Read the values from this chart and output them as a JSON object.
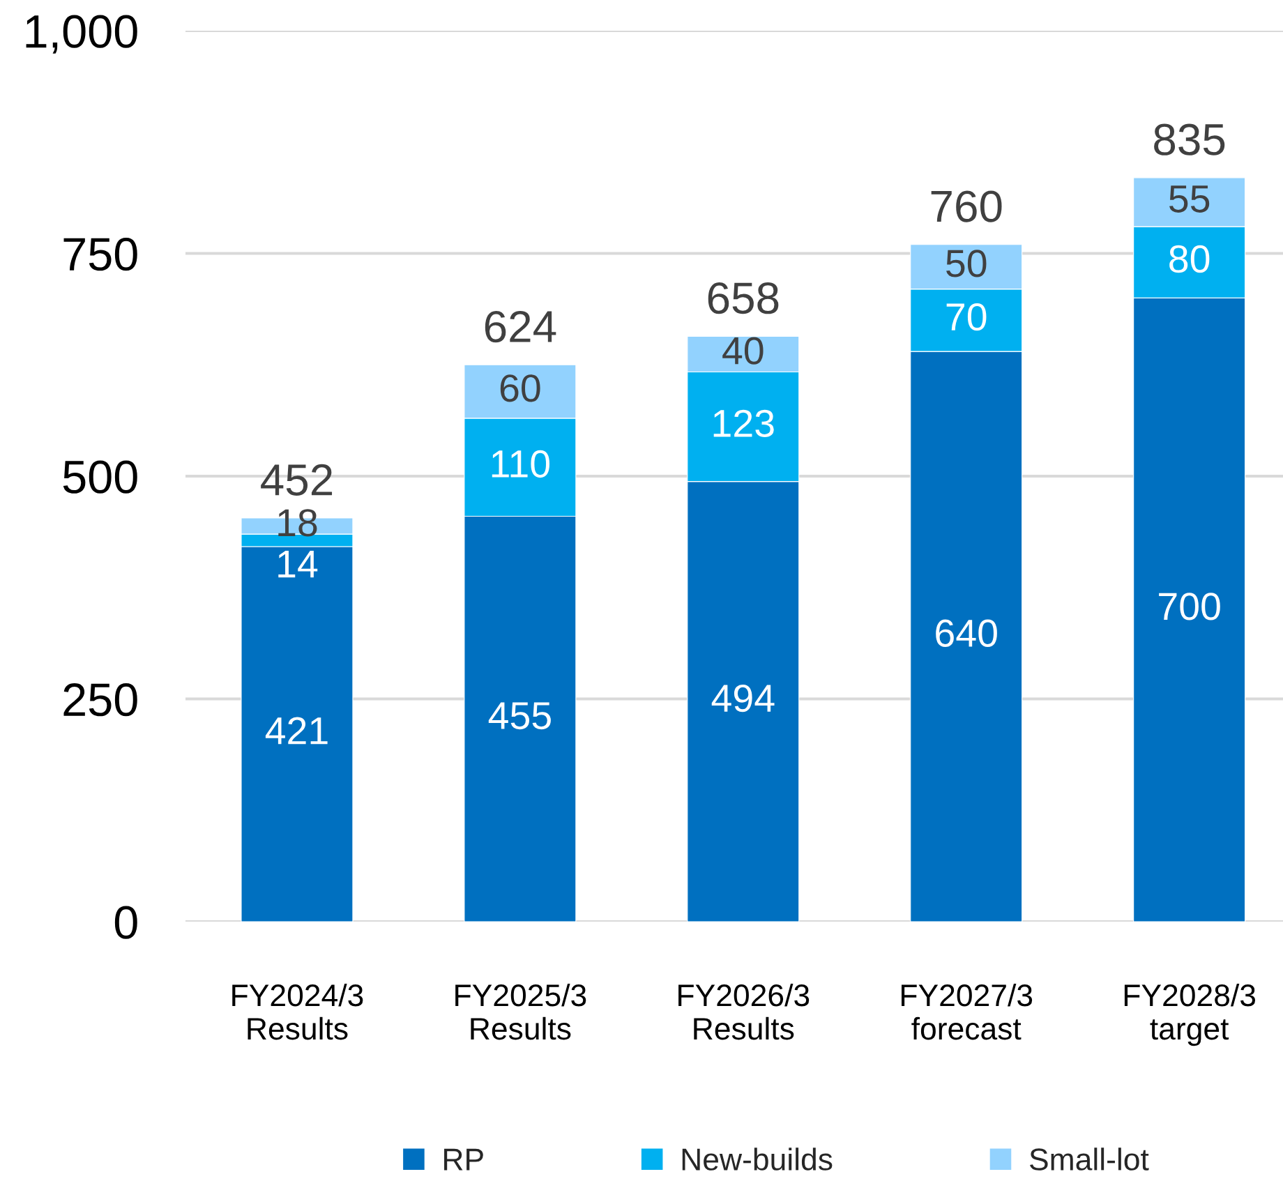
{
  "chart_data": {
    "type": "bar",
    "stacked": true,
    "categories": [
      "FY2024/3\nResults",
      "FY2025/3\nResults",
      "FY2026/3\nResults",
      "FY2027/3\nforecast",
      "FY2028/3\ntarget"
    ],
    "series": [
      {
        "name": "RP",
        "color": "#0070c0",
        "values": [
          421,
          455,
          494,
          640,
          700
        ]
      },
      {
        "name": "New-builds",
        "color": "#00b0f0",
        "values": [
          14,
          110,
          123,
          70,
          80
        ]
      },
      {
        "name": "Small-lot",
        "color": "#92d2fe",
        "values": [
          18,
          60,
          40,
          50,
          55
        ]
      }
    ],
    "ylim": [
      0,
      1000
    ],
    "yticks": [
      0,
      250,
      500,
      750,
      {
        "value": 1000,
        "label": "1,000"
      }
    ],
    "grid": "y",
    "legend": "bottom",
    "data_labels": true,
    "totals": [
      "452",
      "624",
      "658",
      "760",
      "835"
    ]
  }
}
